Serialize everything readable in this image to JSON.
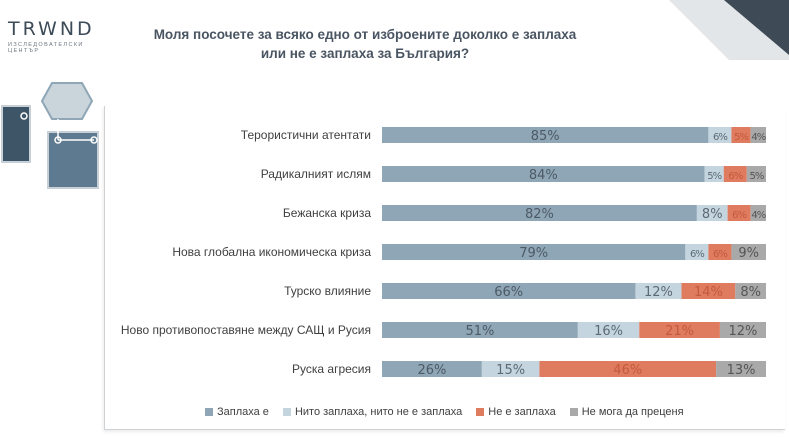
{
  "logo": {
    "word": "TRWND",
    "sub": "ИЗСЛЕДОВАТЕЛСКИ ЦЕНТЪР"
  },
  "title": "Моля посочете за всяко едно от изброените доколко е заплаха или не е заплаха за България?",
  "colors": {
    "threat": "#8ea6b6",
    "neither": "#c5d5df",
    "not_threat": "#df7b5f",
    "cannot_judge": "#a9a9a9",
    "accent_dark": "#3e4b57"
  },
  "chart_data": {
    "type": "bar",
    "orientation": "horizontal",
    "stacked": true,
    "percent_scale": true,
    "categories": [
      "Терористични атентати",
      "Радикалният ислям",
      "Бежанска криза",
      "Нова глобална икономическа криза",
      "Турско влияние",
      "Ново противопоставяне между САЩ и Русия",
      "Руска агресия"
    ],
    "series": [
      {
        "name": "Заплаха е",
        "values": [
          85,
          84,
          82,
          79,
          66,
          51,
          26
        ],
        "labels": [
          "85%",
          "84%",
          "82%",
          "79%",
          "66%",
          "51%",
          "26%"
        ]
      },
      {
        "name": "Нито заплаха, нито не е заплаха",
        "values": [
          6,
          5,
          8,
          6,
          12,
          16,
          15
        ],
        "labels": [
          "6%",
          "5%",
          "8%",
          "6%",
          "12%",
          "16%",
          "15%"
        ]
      },
      {
        "name": "Не е заплаха",
        "values": [
          5,
          6,
          6,
          6,
          14,
          21,
          46
        ],
        "labels": [
          "5%",
          "6%",
          "6%",
          "6%",
          "14%",
          "21%",
          "46%"
        ]
      },
      {
        "name": "Не мога да преценя",
        "values": [
          4,
          5,
          4,
          9,
          8,
          12,
          13
        ],
        "labels": [
          "4%",
          "5%",
          "4%",
          "9%",
          "8%",
          "12%",
          "13%"
        ]
      }
    ],
    "legend_position": "bottom",
    "grid": false
  }
}
